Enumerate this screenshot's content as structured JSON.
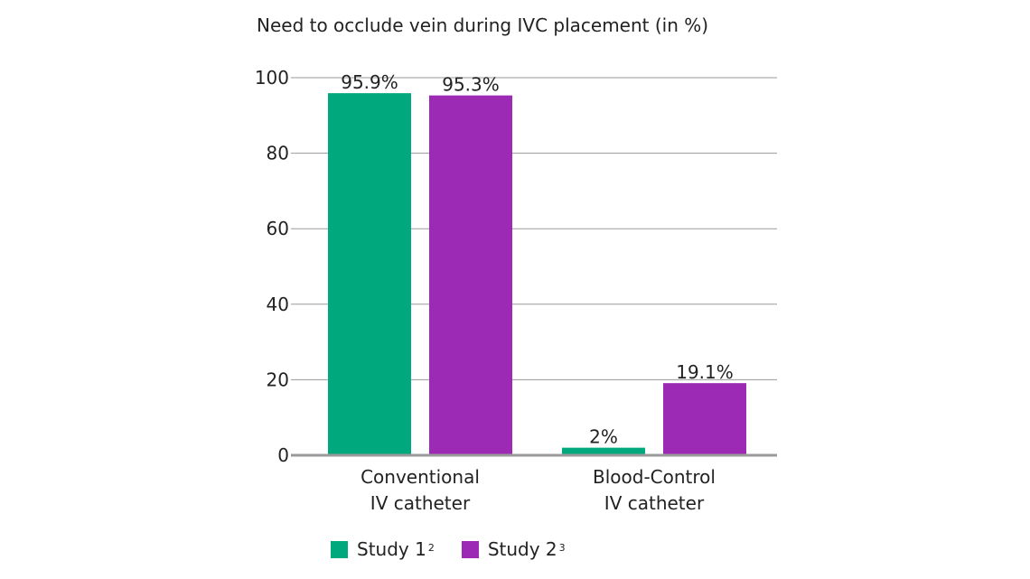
{
  "chart_data": {
    "type": "bar",
    "title": "Need to occlude vein during IVC placement (in %)",
    "xlabel": "",
    "ylabel": "",
    "ylim": [
      0,
      100
    ],
    "yticks": [
      0,
      20,
      40,
      60,
      80,
      100
    ],
    "grid": true,
    "legend_position": "bottom",
    "categories": [
      [
        "Conventional",
        "IV catheter"
      ],
      [
        "Blood-Control",
        "IV catheter"
      ]
    ],
    "series": [
      {
        "name": "Study 1",
        "footnote": "2",
        "color": "#00a87e",
        "values": [
          95.9,
          2
        ],
        "labels": [
          "95.9%",
          "2%"
        ]
      },
      {
        "name": "Study 2",
        "footnote": "3",
        "color": "#9c2ab5",
        "values": [
          95.3,
          19.1
        ],
        "labels": [
          "95.3%",
          "19.1%"
        ]
      }
    ]
  }
}
